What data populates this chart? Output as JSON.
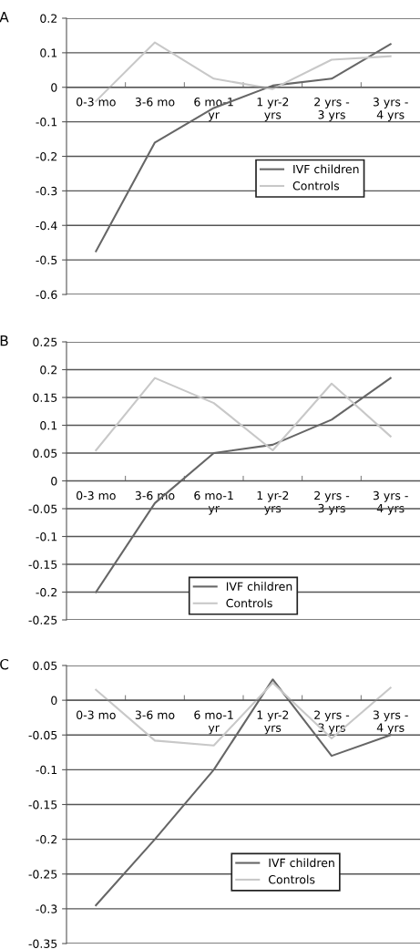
{
  "chart_data": [
    {
      "type": "line",
      "title": "A",
      "categories": [
        "0-3 mo",
        "3-6 mo",
        "6 mo-1\nyr",
        "1 yr-2\nyrs",
        "2 yrs -\n3 yrs",
        "3 yrs -\n4 yrs"
      ],
      "series": [
        {
          "name": "IVF children",
          "color": "#666666",
          "values": [
            -0.475,
            -0.16,
            -0.06,
            0.005,
            0.025,
            0.125
          ]
        },
        {
          "name": "Controls",
          "color": "#c8c8c8",
          "values": [
            -0.04,
            0.13,
            0.025,
            -0.005,
            0.08,
            0.09
          ]
        }
      ],
      "ylim": [
        -0.6,
        0.2
      ],
      "yticks": [
        -0.6,
        -0.5,
        -0.4,
        -0.3,
        -0.2,
        -0.1,
        0,
        0.1,
        0.2
      ],
      "grid": "y",
      "legend": "center right",
      "marker": "none",
      "line_style": "solid"
    },
    {
      "type": "line",
      "title": "B",
      "categories": [
        "0-3 mo",
        "3-6 mo",
        "6 mo-1\nyr",
        "1 yr-2\nyrs",
        "2 yrs -\n3 yrs",
        "3 yrs -\n4 yrs"
      ],
      "series": [
        {
          "name": "IVF children",
          "color": "#666666",
          "values": [
            -0.2,
            -0.04,
            0.05,
            0.065,
            0.11,
            0.185
          ]
        },
        {
          "name": "Controls",
          "color": "#c8c8c8",
          "values": [
            0.055,
            0.185,
            0.14,
            0.055,
            0.175,
            0.08
          ]
        }
      ],
      "ylim": [
        -0.25,
        0.25
      ],
      "yticks": [
        -0.25,
        -0.2,
        -0.15,
        -0.1,
        -0.05,
        0,
        0.05,
        0.1,
        0.15,
        0.2,
        0.25
      ],
      "grid": "y",
      "legend": "bottom",
      "marker": "none",
      "line_style": "solid"
    },
    {
      "type": "line",
      "title": "C",
      "categories": [
        "0-3 mo",
        "3-6 mo",
        "6 mo-1\nyr",
        "1 yr-2\nyrs",
        "2 yrs -\n3 yrs",
        "3 yrs -\n4 yrs"
      ],
      "series": [
        {
          "name": "IVF children",
          "color": "#666666",
          "values": [
            -0.295,
            -0.2,
            -0.1,
            0.03,
            -0.08,
            -0.05
          ]
        },
        {
          "name": "Controls",
          "color": "#c8c8c8",
          "values": [
            0.015,
            -0.058,
            -0.065,
            0.025,
            -0.055,
            0.018
          ]
        }
      ],
      "ylim": [
        -0.35,
        0.05
      ],
      "yticks": [
        -0.35,
        -0.3,
        -0.25,
        -0.2,
        -0.15,
        -0.1,
        -0.05,
        0,
        0.05
      ],
      "grid": "y",
      "legend": "bottom right",
      "marker": "none",
      "line_style": "solid"
    }
  ]
}
